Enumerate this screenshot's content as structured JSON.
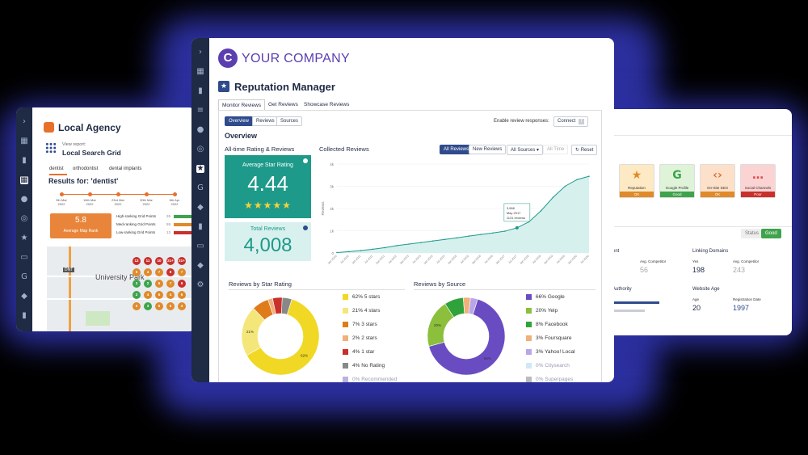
{
  "left_card": {
    "title": "Local Agency",
    "view_report_label": "View report:",
    "report_name": "Local Search Grid",
    "keywords": [
      "dentist",
      "orthodontist",
      "dental implants"
    ],
    "results_for": "Results for: 'dentist'",
    "timeline_dates": [
      "9th Mar\n2022",
      "16th Mar\n2022",
      "23rd Mar\n2022",
      "30th Mar\n2022",
      "6th Apr\n2022"
    ],
    "avg_rank_value": "5.8",
    "avg_rank_label": "Average Map Rank",
    "grid_points": [
      {
        "label": "High-ranking Grid Points",
        "count": "26",
        "color": "#3fa34d"
      },
      {
        "label": "Med-ranking Grid Points",
        "count": "59",
        "color": "#e08a2a"
      },
      {
        "label": "Low-ranking Grid Points",
        "count": "13",
        "color": "#c9302c"
      }
    ],
    "map_labels": [
      "University Park",
      "DNT"
    ],
    "map_dots": [
      {
        "v": "12",
        "c": "#c9302c"
      },
      {
        "v": "11",
        "c": "#c9302c"
      },
      {
        "v": "10",
        "c": "#c9302c"
      },
      {
        "v": "21+",
        "c": "#c9302c"
      },
      {
        "v": "21+",
        "c": "#c9302c"
      },
      {
        "v": "5",
        "c": "#e08a2a"
      },
      {
        "v": "4",
        "c": "#e08a2a"
      },
      {
        "v": "7",
        "c": "#e08a2a"
      },
      {
        "v": "8",
        "c": "#c9302c"
      },
      {
        "v": "7",
        "c": "#e08a2a"
      },
      {
        "v": "3",
        "c": "#3fa34d"
      },
      {
        "v": "2",
        "c": "#3fa34d"
      },
      {
        "v": "6",
        "c": "#e08a2a"
      },
      {
        "v": "7",
        "c": "#e08a2a"
      },
      {
        "v": "9",
        "c": "#c9302c"
      },
      {
        "v": "2",
        "c": "#3fa34d"
      },
      {
        "v": "4",
        "c": "#e08a2a"
      },
      {
        "v": "5",
        "c": "#e08a2a"
      },
      {
        "v": "4",
        "c": "#e08a2a"
      },
      {
        "v": "6",
        "c": "#e08a2a"
      },
      {
        "v": "5",
        "c": "#e08a2a"
      },
      {
        "v": "3",
        "c": "#3fa34d"
      },
      {
        "v": "6",
        "c": "#e08a2a"
      },
      {
        "v": "5",
        "c": "#e08a2a"
      },
      {
        "v": "4",
        "c": "#e08a2a"
      }
    ]
  },
  "right_card": {
    "tiles": [
      {
        "label": "Reputation",
        "status": "OK",
        "bg": "#fde9c4",
        "ft": "#e08a2a",
        "icon": "★",
        "icolor": "#e08a2a"
      },
      {
        "label": "Google Profile",
        "status": "Good",
        "bg": "#dff3d9",
        "ft": "#3fa34d",
        "icon": "G",
        "icolor": "#3fa34d"
      },
      {
        "label": "On-Site SEO",
        "status": "OK",
        "bg": "#fde0c9",
        "ft": "#e08a2a",
        "icon": "‹›",
        "icolor": "#e0702a"
      },
      {
        "label": "Social Channels",
        "status": "Poor",
        "bg": "#fbd3d3",
        "ft": "#c9302c",
        "icon": "…",
        "icolor": "#e04a4a"
      }
    ],
    "status_label": "Status",
    "status_value": "Good",
    "linking_domains_title": "Linking Domains",
    "yes_label": "Yes",
    "avg_competitor_label": "Avg. Competitor",
    "linking_value": "198",
    "linking_competitor": "243",
    "left_avg_competitor_label": "Avg. Competitor",
    "left_avg_value": "56",
    "authority_label": "Authority",
    "website_age_title": "Website Age",
    "age_label": "Age",
    "registration_label": "Registration Date",
    "age_value": "20",
    "registration_value": "1997",
    "partial_label": "ent"
  },
  "main_card": {
    "brand_letter": "C",
    "brand_name": "YOUR COMPANY",
    "page_title": "Reputation Manager",
    "top_tabs": [
      "Monitor Reviews",
      "Get Reviews",
      "Showcase Reviews"
    ],
    "sub_tabs": [
      "Overview",
      "Reviews",
      "Sources"
    ],
    "enable_label": "Enable review responses:",
    "connect_label": "Connect",
    "section_title": "Overview",
    "alltime_title": "All-time Rating & Reviews",
    "avg_star_label": "Average Star Rating",
    "avg_star_value": "4.44",
    "stars": "★★★★★",
    "total_reviews_label": "Total Reviews",
    "total_reviews_value": "4,008",
    "collected_title": "Collected Reviews",
    "filters": [
      "All Reviews",
      "New Reviews",
      "All Sources ▾",
      "All Time",
      "↻ Reset"
    ],
    "star_title": "Reviews by Star Rating",
    "source_title": "Reviews by Source",
    "tooltip_lines": [
      "3,988",
      "May 2017",
      "1131 reviews"
    ],
    "star_legend": [
      {
        "label": "62% 5 stars",
        "color": "#f0d824"
      },
      {
        "label": "21% 4 stars",
        "color": "#f5e67a"
      },
      {
        "label": "7% 3 stars",
        "color": "#e07b1a"
      },
      {
        "label": "2% 2 stars",
        "color": "#f0b07a"
      },
      {
        "label": "4% 1 star",
        "color": "#c9302c"
      },
      {
        "label": "4% No Rating",
        "color": "#888888"
      },
      {
        "label": "0% Recommended",
        "color": "#b9b2e0"
      }
    ],
    "source_legend": [
      {
        "label": "66% Google",
        "color": "#6a4cc2"
      },
      {
        "label": "20% Yelp",
        "color": "#8bbf3c"
      },
      {
        "label": "8% Facebook",
        "color": "#2fa33a"
      },
      {
        "label": "3% Foursquare",
        "color": "#f0b07a"
      },
      {
        "label": "3% Yahoo! Local",
        "color": "#b9a6e8"
      },
      {
        "label": "0% Citysearch",
        "color": "#cfe8f5"
      },
      {
        "label": "0% Superpages",
        "color": "#bbbbbb"
      }
    ],
    "star_donut_labels": [
      "62%",
      "21%"
    ],
    "source_donut_labels": [
      "66%",
      "20%"
    ]
  },
  "chart_data": [
    {
      "type": "area",
      "title": "Collected Reviews",
      "ylabel": "Reviews",
      "yticks": [
        "4k",
        "3k",
        "2k",
        "1k",
        "0"
      ],
      "ylim": [
        0,
        4000
      ],
      "x": [
        "Jan 2010",
        "Jul 2010",
        "Jan 2011",
        "Jul 2011",
        "Jan 2012",
        "Jul 2012",
        "Jan 2013",
        "Jul 2013",
        "Jan 2014",
        "Jul 2014",
        "Jan 2015",
        "Jul 2015",
        "Jan 2016",
        "Jul 2016",
        "Jan 2017",
        "Jul 2017",
        "Jan 2018",
        "Jul 2018",
        "Jan 2019",
        "Jul 2019",
        "Jan 2020",
        "Jul 2020"
      ],
      "series": [
        {
          "values": [
            20,
            60,
            110,
            170,
            240,
            330,
            400,
            470,
            540,
            610,
            680,
            760,
            830,
            900,
            980,
            1131,
            1400,
            1900,
            2500,
            3000,
            3300,
            3450
          ]
        }
      ]
    },
    {
      "type": "pie",
      "title": "Reviews by Star Rating",
      "categories": [
        "5 stars",
        "4 stars",
        "3 stars",
        "2 stars",
        "1 star",
        "No Rating",
        "Recommended"
      ],
      "values": [
        62,
        21,
        7,
        2,
        4,
        4,
        0
      ]
    },
    {
      "type": "pie",
      "title": "Reviews by Source",
      "categories": [
        "Google",
        "Yelp",
        "Facebook",
        "Foursquare",
        "Yahoo! Local",
        "Citysearch",
        "Superpages"
      ],
      "values": [
        66,
        20,
        8,
        3,
        3,
        0,
        0
      ]
    }
  ]
}
